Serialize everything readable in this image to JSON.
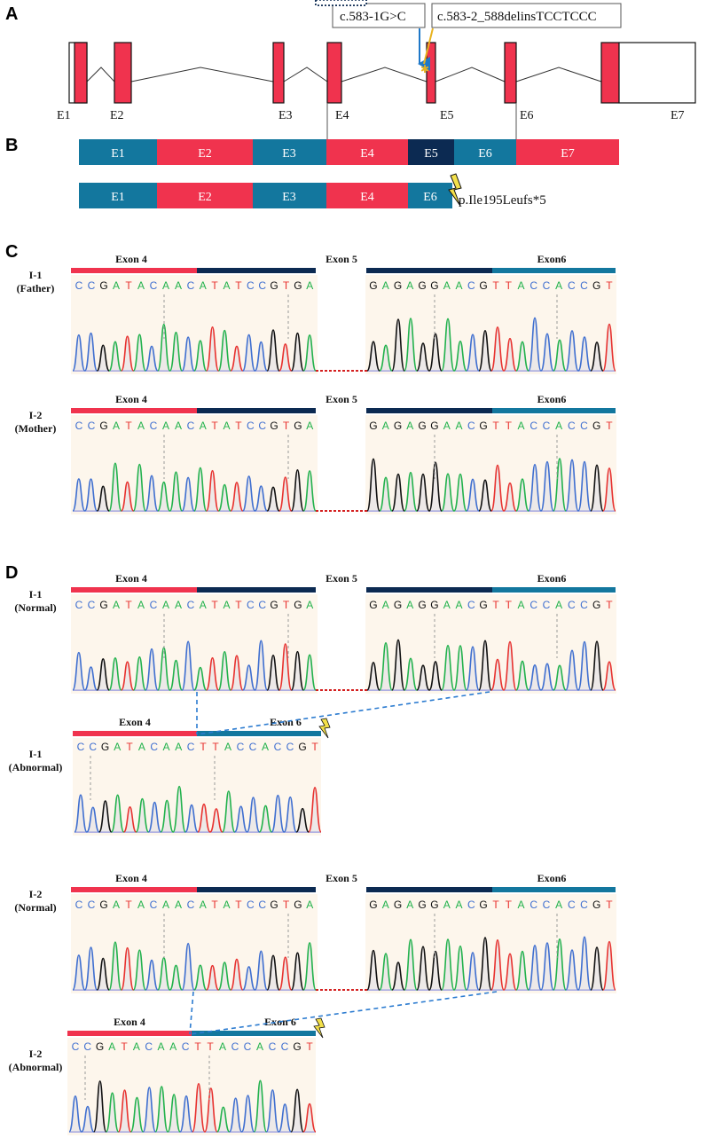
{
  "panels": {
    "a": {
      "letter": "A",
      "exons": [
        "E1",
        "E2",
        "E3",
        "E4",
        "E5",
        "E6",
        "E7"
      ],
      "variant_1": "c.583-1G>C",
      "variant_2": "c.583-2_588delinsTCCTCCC"
    },
    "b": {
      "letter": "B",
      "normal_exons": [
        "E1",
        "E2",
        "E3",
        "E4",
        "E5",
        "E6",
        "E7"
      ],
      "mutant_exons": [
        "E1",
        "E2",
        "E3",
        "E4",
        "E6"
      ],
      "protein_change": "p.Ile195Leufs*5"
    },
    "c": {
      "letter": "C",
      "rows": [
        {
          "id": "I-1",
          "role": "(Father)"
        },
        {
          "id": "I-2",
          "role": "(Mother)"
        }
      ]
    },
    "d": {
      "letter": "D",
      "rows": [
        {
          "id": "I-1",
          "role": "(Normal)"
        },
        {
          "id": "I-1",
          "role": "(Abnormal)"
        },
        {
          "id": "I-2",
          "role": "(Normal)"
        },
        {
          "id": "I-2",
          "role": "(Abnormal)"
        }
      ]
    }
  },
  "exon_labels": {
    "exon4": "Exon 4",
    "exon5": "Exon 5",
    "exon6": "Exon6",
    "exon6_spaced": "Exon 6"
  },
  "sequences": {
    "exon4": "CCGATACAAC",
    "exon5_tail": "ATATCCGTGA",
    "exon5_head": "GAGAGGAACG",
    "exon6": "TTACCACCGT"
  },
  "colors": {
    "red": "#f0334e",
    "blue": "#13779e",
    "navy": "#0c2a52",
    "A": "#22b24c",
    "C": "#3f6fd0",
    "G": "#111111",
    "T": "#e8322f",
    "bg": "#fdf6ec"
  }
}
